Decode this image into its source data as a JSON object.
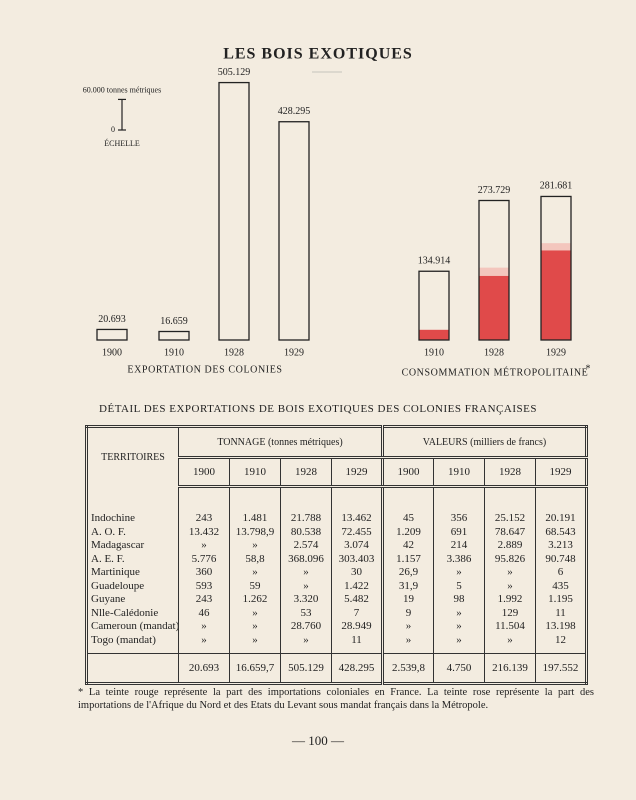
{
  "title": "LES BOIS EXOTIQUES",
  "chart_data": [
    {
      "type": "bar",
      "title": "EXPORTATION DES COLONIES",
      "categories": [
        "1900",
        "1910",
        "1928",
        "1929"
      ],
      "values": [
        20693,
        16659,
        505129,
        428295
      ],
      "value_labels": [
        "20.693",
        "16.659",
        "505.129",
        "428.295"
      ],
      "color": "#222222",
      "ylim": [
        0,
        520000
      ],
      "yticks": [
        0,
        {
          "value": 60000,
          "label": "60.000 tonnes métriques"
        }
      ],
      "y_label": "ÉCHELLE"
    },
    {
      "type": "bar",
      "title": "CONSOMMATION MÉTROPOLITAINE",
      "note": "*",
      "categories": [
        "1910",
        "1928",
        "1929"
      ],
      "values": [
        134914,
        273729,
        281681
      ],
      "value_labels": [
        "134.914",
        "273.729",
        "281.681"
      ],
      "color": "#222222",
      "ylim": [
        0,
        520000
      ],
      "series": [
        {
          "color": "#e04a4a",
          "values": [
            20000,
            126000,
            176000
          ]
        },
        {
          "color": "#f3c6bd",
          "values": [
            0,
            16000,
            14000
          ]
        }
      ]
    }
  ],
  "table": {
    "title": "DÉTAIL DES EXPORTATIONS DE BOIS EXOTIQUES DES COLONIES FRANÇAISES",
    "header": {
      "territories": "TERRITOIRES",
      "tonnage": "TONNAGE (tonnes métriques)",
      "valeurs": "VALEURS (milliers de francs)",
      "years": [
        "1900",
        "1910",
        "1928",
        "1929",
        "1900",
        "1910",
        "1928",
        "1929"
      ]
    },
    "rows": [
      [
        "Indochine",
        "243",
        "1.481",
        "21.788",
        "13.462",
        "45",
        "356",
        "25.152",
        "20.191"
      ],
      [
        "A. O. F.",
        "13.432",
        "13.798,9",
        "80.538",
        "72.455",
        "1.209",
        "691",
        "78.647",
        "68.543"
      ],
      [
        "Madagascar",
        "»",
        "»",
        "2.574",
        "3.074",
        "42",
        "214",
        "2.889",
        "3.213"
      ],
      [
        "A. E. F.",
        "5.776",
        "58,8",
        "368.096",
        "303.403",
        "1.157",
        "3.386",
        "95.826",
        "90.748"
      ],
      [
        "Martinique",
        "360",
        "»",
        "»",
        "30",
        "26,9",
        "»",
        "»",
        "6"
      ],
      [
        "Guadeloupe",
        "593",
        "59",
        "»",
        "1.422",
        "31,9",
        "5",
        "»",
        "435"
      ],
      [
        "Guyane",
        "243",
        "1.262",
        "3.320",
        "5.482",
        "19",
        "98",
        "1.992",
        "1.195"
      ],
      [
        "Nlle-Calédonie",
        "46",
        "»",
        "53",
        "7",
        "9",
        "»",
        "129",
        "11"
      ],
      [
        "Cameroun (mandat)",
        "»",
        "»",
        "28.760",
        "28.949",
        "»",
        "»",
        "11.504",
        "13.198"
      ],
      [
        "Togo (mandat)",
        "»",
        "»",
        "»",
        "11",
        "»",
        "»",
        "»",
        "12"
      ]
    ],
    "total": [
      "20.693",
      "16.659,7",
      "505.129",
      "428.295",
      "2.539,8",
      "4.750",
      "216.139",
      "197.552"
    ]
  },
  "footnote": "* La teinte rouge représente la part des importations coloniales en France. La teinte rose représente la part des importations de l'Afrique du Nord et des Etats du Levant sous mandat français dans la Métropole.",
  "page_number": "— 100 —"
}
